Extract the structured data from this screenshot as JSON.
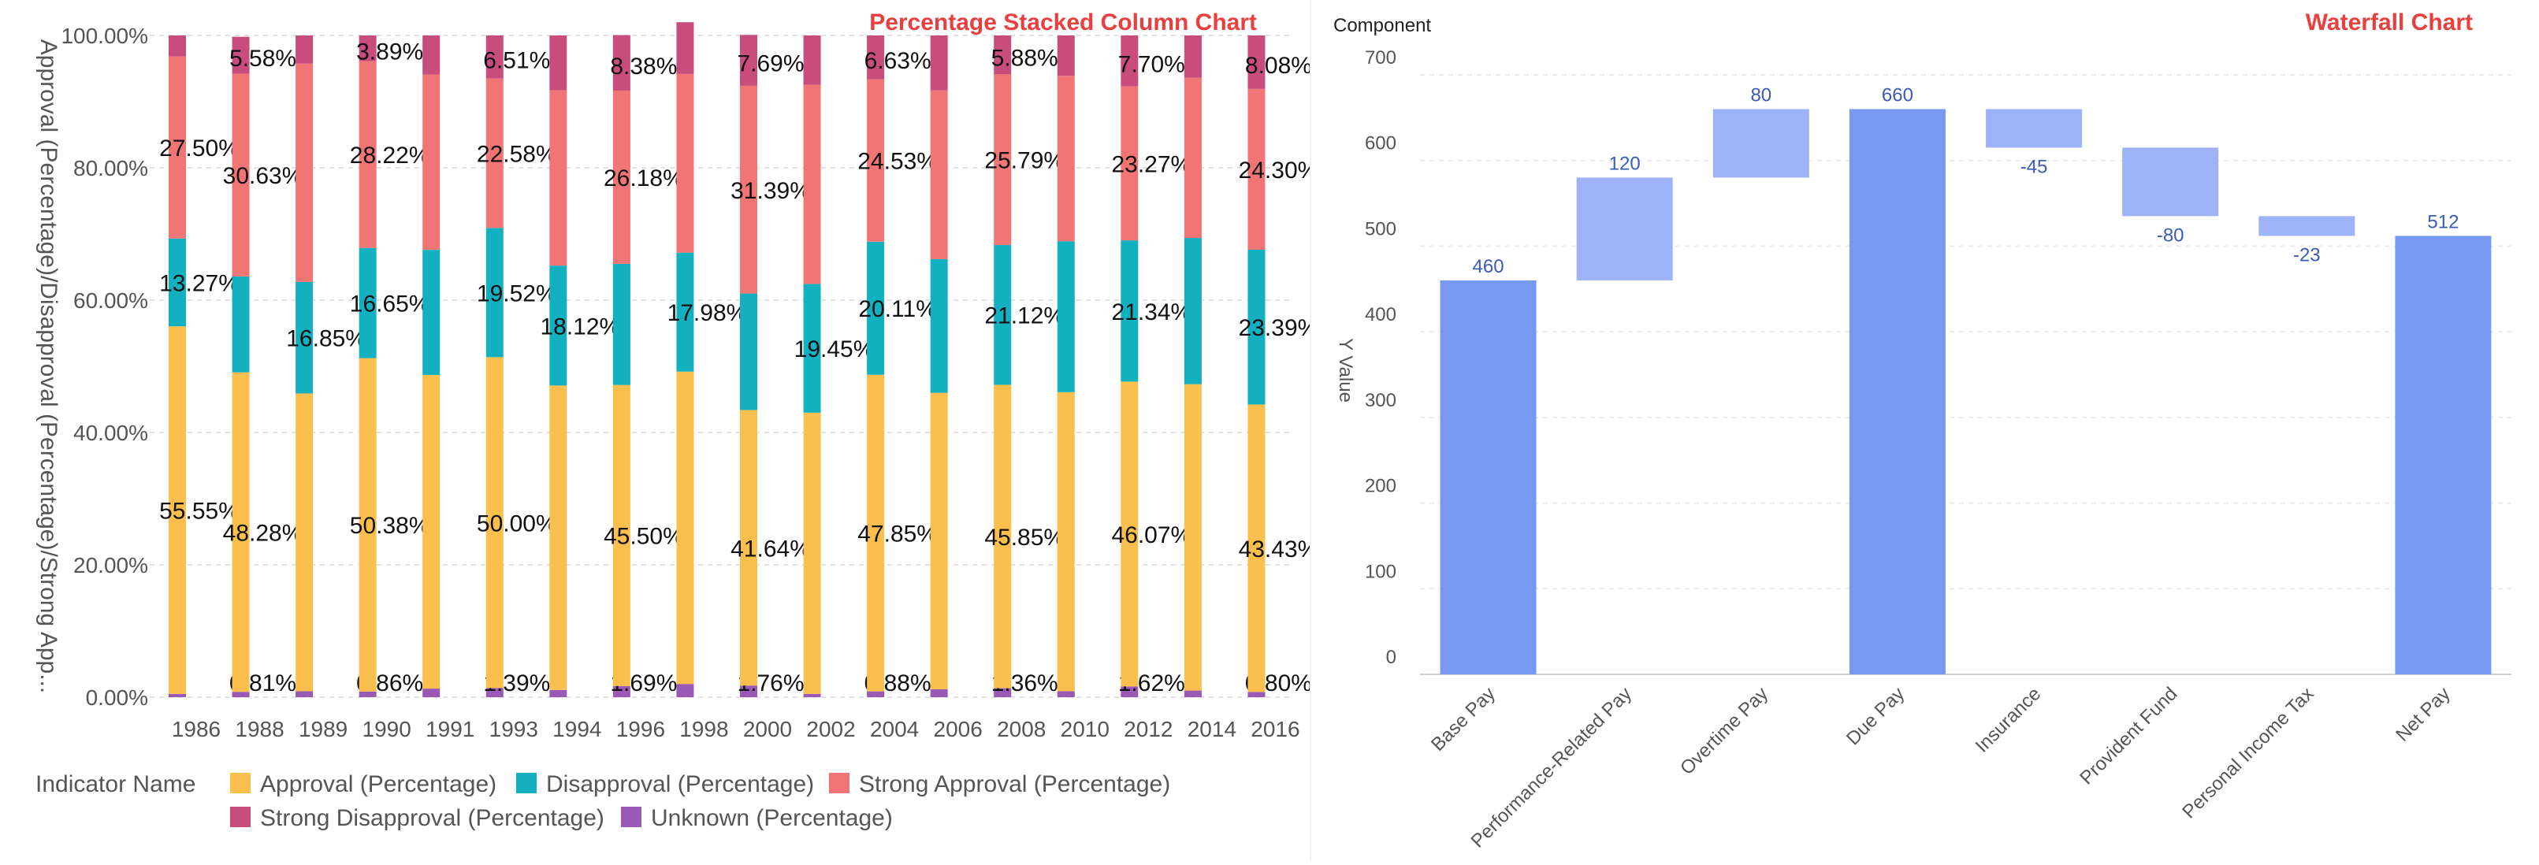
{
  "chart_data": [
    {
      "type": "bar",
      "stacked": "percent",
      "title": "Percentage Stacked Column Chart",
      "title_color": "#e8403f",
      "xlabel": "",
      "ylabel": "Approval (Percentage)/Disapproval (Percentage)/Strong App...",
      "ylim": [
        0,
        100
      ],
      "y_ticks": [
        "0.00%",
        "20.00%",
        "40.00%",
        "60.00%",
        "80.00%",
        "100.00%"
      ],
      "grid": true,
      "legend_title": "Indicator Name",
      "legend_position": "bottom-left",
      "categories": [
        "1986",
        "1988",
        "1989",
        "1990",
        "1991",
        "1993",
        "1994",
        "1996",
        "1998",
        "2000",
        "2002",
        "2004",
        "2006",
        "2008",
        "2010",
        "2012",
        "2014",
        "2016"
      ],
      "series": [
        {
          "name": "Unknown (Percentage)",
          "color": "#9b59b6",
          "values": [
            0.5,
            0.81,
            0.9,
            0.86,
            1.3,
            1.39,
            1.1,
            1.69,
            2.0,
            1.76,
            0.5,
            0.88,
            1.2,
            1.36,
            0.9,
            1.62,
            1.0,
            0.8
          ]
        },
        {
          "name": "Approval (Percentage)",
          "color": "#fbbf4e",
          "values": [
            55.55,
            48.28,
            45.0,
            50.38,
            47.4,
            50.0,
            46.0,
            45.5,
            47.2,
            41.64,
            42.5,
            47.85,
            44.8,
            45.85,
            45.2,
            46.07,
            46.3,
            43.43
          ]
        },
        {
          "name": "Disapproval (Percentage)",
          "color": "#13b0c0",
          "values": [
            13.27,
            14.5,
            16.85,
            16.65,
            18.9,
            19.52,
            18.12,
            18.3,
            17.98,
            17.6,
            19.45,
            20.11,
            20.2,
            21.12,
            22.8,
            21.34,
            22.1,
            23.39
          ]
        },
        {
          "name": "Strong Approval (Percentage)",
          "color": "#f17574",
          "values": [
            27.5,
            30.63,
            33.0,
            28.22,
            26.5,
            22.58,
            26.5,
            26.18,
            27.0,
            31.39,
            30.1,
            24.53,
            25.5,
            25.79,
            25.0,
            23.27,
            24.2,
            24.3
          ]
        },
        {
          "name": "Strong Disapproval (Percentage)",
          "color": "#c94d7c",
          "values": [
            3.18,
            5.58,
            4.25,
            3.89,
            5.9,
            6.51,
            8.28,
            8.38,
            7.82,
            7.69,
            7.45,
            6.63,
            8.3,
            5.88,
            6.1,
            7.7,
            6.4,
            8.08
          ]
        }
      ],
      "data_labels": [
        {
          "category": "1986",
          "series": "Approval (Percentage)",
          "text": "55.55%"
        },
        {
          "category": "1986",
          "series": "Disapproval (Percentage)",
          "text": "13.27%"
        },
        {
          "category": "1986",
          "series": "Strong Approval (Percentage)",
          "text": "27.50%"
        },
        {
          "category": "1988",
          "series": "Unknown (Percentage)",
          "text": "0.81%"
        },
        {
          "category": "1988",
          "series": "Approval (Percentage)",
          "text": "48.28%"
        },
        {
          "category": "1988",
          "series": "Strong Approval (Percentage)",
          "text": "30.63%"
        },
        {
          "category": "1988",
          "series": "Strong Disapproval (Percentage)",
          "text": "5.58%"
        },
        {
          "category": "1989",
          "series": "Disapproval (Percentage)",
          "text": "16.85%"
        },
        {
          "category": "1990",
          "series": "Unknown (Percentage)",
          "text": "0.86%"
        },
        {
          "category": "1990",
          "series": "Approval (Percentage)",
          "text": "50.38%"
        },
        {
          "category": "1990",
          "series": "Disapproval (Percentage)",
          "text": "16.65%"
        },
        {
          "category": "1990",
          "series": "Strong Approval (Percentage)",
          "text": "28.22%"
        },
        {
          "category": "1990",
          "series": "Strong Disapproval (Percentage)",
          "text": "3.89%"
        },
        {
          "category": "1993",
          "series": "Unknown (Percentage)",
          "text": "1.39%"
        },
        {
          "category": "1993",
          "series": "Approval (Percentage)",
          "text": "50.00%"
        },
        {
          "category": "1993",
          "series": "Disapproval (Percentage)",
          "text": "19.52%"
        },
        {
          "category": "1993",
          "series": "Strong Approval (Percentage)",
          "text": "22.58%"
        },
        {
          "category": "1993",
          "series": "Strong Disapproval (Percentage)",
          "text": "6.51%"
        },
        {
          "category": "1994",
          "series": "Disapproval (Percentage)",
          "text": "18.12%"
        },
        {
          "category": "1996",
          "series": "Unknown (Percentage)",
          "text": "1.69%"
        },
        {
          "category": "1996",
          "series": "Approval (Percentage)",
          "text": "45.50%"
        },
        {
          "category": "1996",
          "series": "Strong Approval (Percentage)",
          "text": "26.18%"
        },
        {
          "category": "1996",
          "series": "Strong Disapproval (Percentage)",
          "text": "8.38%"
        },
        {
          "category": "1998",
          "series": "Disapproval (Percentage)",
          "text": "17.98%"
        },
        {
          "category": "2000",
          "series": "Unknown (Percentage)",
          "text": "1.76%"
        },
        {
          "category": "2000",
          "series": "Approval (Percentage)",
          "text": "41.64%"
        },
        {
          "category": "2000",
          "series": "Strong Approval (Percentage)",
          "text": "31.39%"
        },
        {
          "category": "2000",
          "series": "Strong Disapproval (Percentage)",
          "text": "7.69%"
        },
        {
          "category": "2002",
          "series": "Disapproval (Percentage)",
          "text": "19.45%"
        },
        {
          "category": "2004",
          "series": "Unknown (Percentage)",
          "text": "0.88%"
        },
        {
          "category": "2004",
          "series": "Approval (Percentage)",
          "text": "47.85%"
        },
        {
          "category": "2004",
          "series": "Disapproval (Percentage)",
          "text": "20.11%"
        },
        {
          "category": "2004",
          "series": "Strong Approval (Percentage)",
          "text": "24.53%"
        },
        {
          "category": "2004",
          "series": "Strong Disapproval (Percentage)",
          "text": "6.63%"
        },
        {
          "category": "2008",
          "series": "Unknown (Percentage)",
          "text": "1.36%"
        },
        {
          "category": "2008",
          "series": "Approval (Percentage)",
          "text": "45.85%"
        },
        {
          "category": "2008",
          "series": "Disapproval (Percentage)",
          "text": "21.12%"
        },
        {
          "category": "2008",
          "series": "Strong Approval (Percentage)",
          "text": "25.79%"
        },
        {
          "category": "2008",
          "series": "Strong Disapproval (Percentage)",
          "text": "5.88%"
        },
        {
          "category": "2012",
          "series": "Unknown (Percentage)",
          "text": "1.62%"
        },
        {
          "category": "2012",
          "series": "Approval (Percentage)",
          "text": "46.07%"
        },
        {
          "category": "2012",
          "series": "Disapproval (Percentage)",
          "text": "21.34%"
        },
        {
          "category": "2012",
          "series": "Strong Approval (Percentage)",
          "text": "23.27%"
        },
        {
          "category": "2012",
          "series": "Strong Disapproval (Percentage)",
          "text": "7.70%"
        },
        {
          "category": "2016",
          "series": "Unknown (Percentage)",
          "text": "0.80%"
        },
        {
          "category": "2016",
          "series": "Approval (Percentage)",
          "text": "43.43%"
        },
        {
          "category": "2016",
          "series": "Disapproval (Percentage)",
          "text": "23.39%"
        },
        {
          "category": "2016",
          "series": "Strong Approval (Percentage)",
          "text": "24.30%"
        },
        {
          "category": "2016",
          "series": "Strong Disapproval (Percentage)",
          "text": "8.08%"
        }
      ],
      "legend_order": [
        "Approval (Percentage)",
        "Disapproval (Percentage)",
        "Strong Approval (Percentage)",
        "Strong Disapproval (Percentage)",
        "Unknown (Percentage)"
      ]
    },
    {
      "type": "waterfall",
      "title": "Waterfall Chart",
      "title_color": "#e8403f",
      "legend_title": "Component",
      "xlabel": "",
      "ylabel": "Y Value",
      "ylim": [
        0,
        700
      ],
      "y_ticks": [
        0,
        100,
        200,
        300,
        400,
        500,
        600,
        700
      ],
      "grid": true,
      "total_color": "#7799f2",
      "delta_color": "#9db2f7",
      "label_color": "#3a5bb8",
      "categories": [
        "Base Pay",
        "Performance-Related Pay",
        "Overtime Pay",
        "Due Pay",
        "Insurance",
        "Provident Fund",
        "Personal Income Tax",
        "Net Pay"
      ],
      "steps": [
        {
          "name": "Base Pay",
          "kind": "total",
          "value": 460,
          "label": "460"
        },
        {
          "name": "Performance-Related Pay",
          "kind": "delta",
          "value": 120,
          "label": "120"
        },
        {
          "name": "Overtime Pay",
          "kind": "delta",
          "value": 80,
          "label": "80"
        },
        {
          "name": "Due Pay",
          "kind": "total",
          "value": 660,
          "label": "660"
        },
        {
          "name": "Insurance",
          "kind": "delta",
          "value": -45,
          "label": "-45"
        },
        {
          "name": "Provident Fund",
          "kind": "delta",
          "value": -80,
          "label": "-80"
        },
        {
          "name": "Personal Income Tax",
          "kind": "delta",
          "value": -23,
          "label": "-23"
        },
        {
          "name": "Net Pay",
          "kind": "total",
          "value": 512,
          "label": "512"
        }
      ]
    }
  ]
}
